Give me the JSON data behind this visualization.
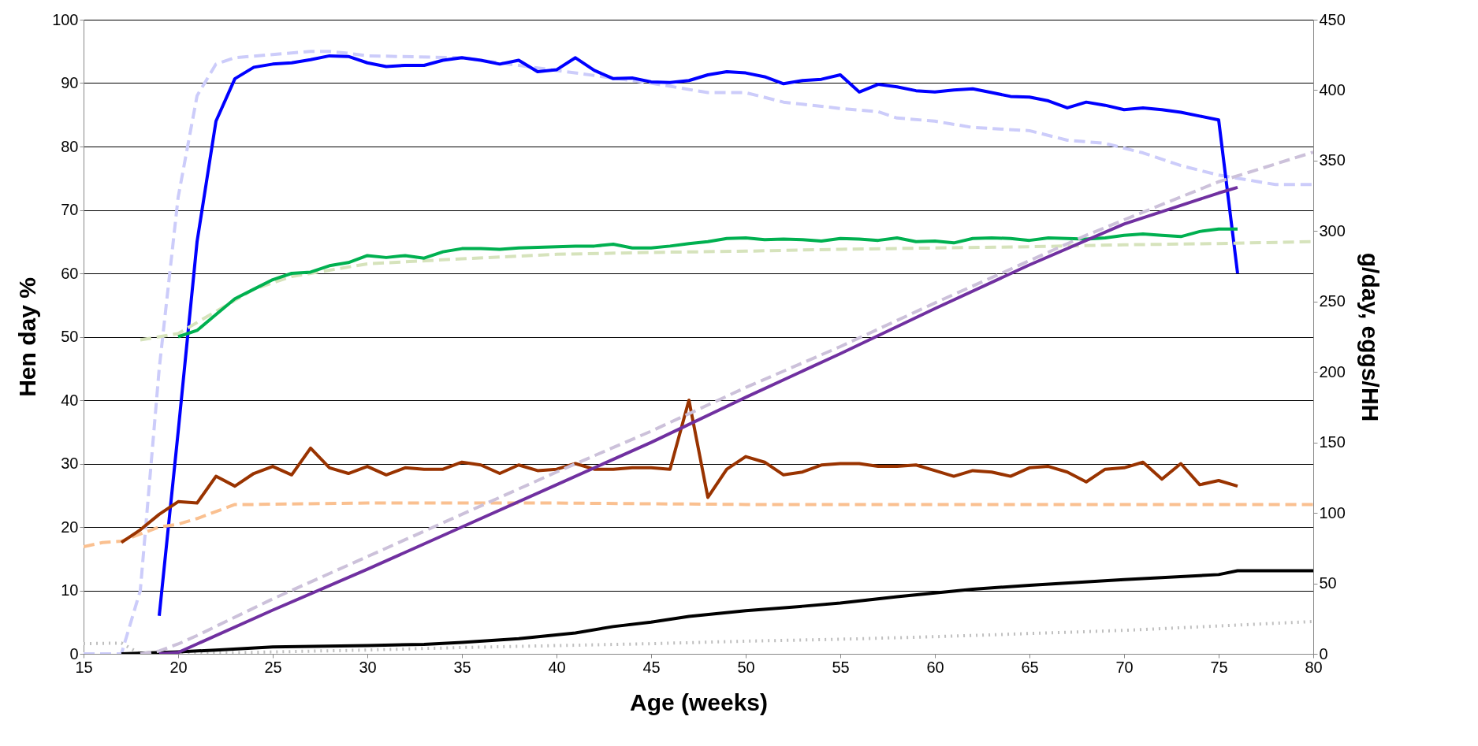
{
  "chart_data": {
    "type": "line",
    "xlabel": "Age (weeks)",
    "ylabel": "Hen day %",
    "y2label": "g/day, eggs/HH",
    "xlim": [
      15,
      80
    ],
    "xticks": [
      15,
      20,
      25,
      30,
      35,
      40,
      45,
      50,
      55,
      60,
      65,
      70,
      75,
      80
    ],
    "ylim": [
      0,
      100
    ],
    "yticks": [
      0,
      10,
      20,
      30,
      40,
      50,
      60,
      70,
      80,
      90,
      100
    ],
    "y2lim": [
      0,
      450
    ],
    "y2ticks": [
      0,
      50,
      100,
      150,
      200,
      250,
      300,
      350,
      400,
      450
    ],
    "grid": "y",
    "marker": "none",
    "series": [
      {
        "color": "#ccccfa",
        "line_style": "dashed",
        "x": [
          15,
          16,
          17,
          18,
          19,
          20,
          21,
          22,
          23,
          27,
          28,
          29,
          30,
          35,
          40,
          45,
          48,
          50,
          52,
          55,
          57,
          58,
          60,
          62,
          65,
          67,
          69,
          71,
          73,
          75,
          77,
          78,
          80
        ],
        "values": [
          0,
          0,
          0,
          10,
          45,
          72,
          88,
          93,
          94,
          95,
          95,
          94.7,
          94.3,
          94,
          92,
          90,
          88.5,
          88.5,
          87,
          86,
          85.5,
          84.5,
          84,
          83,
          82.5,
          81,
          80.5,
          79,
          77,
          75.5,
          74.5,
          74,
          74
        ]
      },
      {
        "color": "#0000ff",
        "line_style": "solid",
        "x": [
          19,
          20,
          21,
          22,
          23,
          24,
          25,
          26,
          27,
          28,
          29,
          30,
          31,
          32,
          33,
          34,
          35,
          36,
          37,
          38,
          39,
          40,
          41,
          42,
          43,
          44,
          45,
          46,
          47,
          48,
          49,
          50,
          51,
          52,
          53,
          54,
          55,
          56,
          57,
          58,
          59,
          60,
          61,
          62,
          63,
          64,
          65,
          66,
          67,
          68,
          69,
          70,
          71,
          72,
          73,
          74,
          75,
          76
        ],
        "values": [
          6,
          35,
          65,
          84,
          90.7,
          92.5,
          93,
          93.2,
          93.7,
          94.3,
          94.2,
          93.2,
          92.6,
          92.8,
          92.8,
          93.6,
          94,
          93.6,
          93,
          93.6,
          91.8,
          92.1,
          94,
          92,
          90.7,
          90.8,
          90.2,
          90.1,
          90.4,
          91.3,
          91.8,
          91.6,
          91,
          89.9,
          90.4,
          90.6,
          91.3,
          88.6,
          89.8,
          89.4,
          88.8,
          88.6,
          88.9,
          89.1,
          88.5,
          87.9,
          87.8,
          87.2,
          86.1,
          87,
          86.5,
          85.8,
          86.1,
          85.8,
          85.4,
          84.8,
          84.2,
          60
        ]
      },
      {
        "color": "#d6e3bc",
        "line_style": "dashed",
        "x": [
          18,
          20,
          22,
          24,
          26,
          28,
          30,
          35,
          40,
          45,
          50,
          55,
          60,
          65,
          70,
          75,
          80
        ],
        "values": [
          49.5,
          50.5,
          54,
          57.5,
          59.5,
          60.5,
          61.5,
          62.3,
          63,
          63.3,
          63.5,
          63.8,
          64,
          64.2,
          64.5,
          64.7,
          65
        ]
      },
      {
        "color": "#00b050",
        "line_style": "solid",
        "x": [
          20,
          21,
          22,
          23,
          24,
          25,
          26,
          27,
          28,
          29,
          30,
          31,
          32,
          33,
          34,
          35,
          36,
          37,
          38,
          39,
          40,
          41,
          42,
          43,
          44,
          45,
          46,
          47,
          48,
          49,
          50,
          51,
          52,
          53,
          54,
          55,
          56,
          57,
          58,
          59,
          60,
          61,
          62,
          63,
          64,
          65,
          66,
          67,
          68,
          69,
          70,
          71,
          72,
          73,
          74,
          75,
          76
        ],
        "values": [
          50,
          51,
          53.5,
          56,
          57.5,
          59,
          60,
          60.2,
          61.2,
          61.7,
          62.8,
          62.5,
          62.8,
          62.4,
          63.4,
          63.9,
          63.9,
          63.8,
          64,
          64.1,
          64.2,
          64.3,
          64.3,
          64.6,
          64,
          64,
          64.3,
          64.7,
          65,
          65.5,
          65.6,
          65.3,
          65.4,
          65.3,
          65.1,
          65.5,
          65.4,
          65.2,
          65.6,
          65,
          65.1,
          64.8,
          65.5,
          65.6,
          65.5,
          65.2,
          65.6,
          65.5,
          65.4,
          65.6,
          66,
          66.2,
          66,
          65.8,
          66.6,
          67,
          67
        ]
      },
      {
        "color": "#fac090",
        "line_style": "dashed",
        "axis": "y2",
        "x": [
          15,
          16,
          17,
          18,
          19,
          20,
          21,
          22,
          23,
          24,
          30,
          40,
          50,
          60,
          70,
          80
        ],
        "values": [
          76,
          79,
          80,
          85,
          90,
          92,
          96,
          101,
          106,
          106,
          107,
          107,
          106,
          106,
          106,
          106
        ]
      },
      {
        "color": "#993300",
        "line_style": "solid",
        "axis": "y2",
        "x": [
          17,
          18,
          19,
          20,
          21,
          22,
          23,
          24,
          25,
          26,
          27,
          28,
          29,
          30,
          31,
          32,
          33,
          34,
          35,
          36,
          37,
          38,
          39,
          40,
          41,
          42,
          43,
          44,
          45,
          46,
          47,
          48,
          49,
          50,
          51,
          52,
          53,
          54,
          55,
          56,
          57,
          58,
          59,
          60,
          61,
          62,
          63,
          64,
          65,
          66,
          67,
          68,
          69,
          70,
          71,
          72,
          73,
          74,
          75,
          76
        ],
        "values": [
          79,
          88,
          99,
          108,
          107,
          126,
          119,
          128,
          133,
          127,
          146,
          132,
          128,
          133,
          127,
          132,
          131,
          131,
          136,
          134,
          128,
          134,
          130,
          131,
          135,
          131,
          131,
          132,
          132,
          131,
          180,
          111,
          131,
          140,
          136,
          127,
          129,
          134,
          135,
          135,
          133,
          133,
          134,
          130,
          126,
          130,
          129,
          126,
          132,
          133,
          129,
          122,
          131,
          132,
          136,
          124,
          135,
          120,
          123,
          119
        ]
      },
      {
        "color": "#ccc1da",
        "line_style": "dashed",
        "axis": "y2",
        "x": [
          18,
          19,
          20,
          21,
          25,
          30,
          35,
          40,
          45,
          50,
          55,
          60,
          65,
          68,
          70,
          75,
          80
        ],
        "values": [
          0,
          2,
          7,
          13,
          39,
          69,
          99,
          129,
          158,
          189,
          218,
          249,
          279,
          297,
          308,
          335,
          356
        ]
      },
      {
        "color": "#7030a0",
        "line_style": "solid",
        "axis": "y2",
        "x": [
          19,
          20,
          21,
          25,
          30,
          35,
          40,
          45,
          50,
          55,
          60,
          65,
          70,
          75,
          76
        ],
        "values": [
          0,
          1,
          7,
          31,
          60,
          90,
          120,
          150,
          182,
          213,
          245,
          276,
          305,
          327,
          331
        ]
      },
      {
        "color": "#bfbfbf",
        "line_style": "dotted",
        "x": [
          15,
          17,
          18,
          20,
          25,
          30,
          35,
          40,
          45,
          50,
          55,
          60,
          65,
          70,
          75,
          80
        ],
        "values": [
          1.6,
          1.7,
          0,
          0,
          0.3,
          0.6,
          1,
          1.3,
          1.6,
          2,
          2.3,
          2.7,
          3.2,
          3.7,
          4.4,
          5.1
        ]
      },
      {
        "color": "#000000",
        "line_style": "solid",
        "x": [
          17,
          20,
          22,
          25,
          30,
          33,
          35,
          38,
          41,
          43,
          45,
          47,
          50,
          53,
          55,
          58,
          60,
          62,
          65,
          70,
          75,
          76,
          80
        ],
        "values": [
          0,
          0.3,
          0.6,
          1.1,
          1.3,
          1.5,
          1.8,
          2.4,
          3.3,
          4.3,
          5,
          5.9,
          6.8,
          7.5,
          8,
          9,
          9.6,
          10.2,
          10.8,
          11.7,
          12.5,
          13.1,
          13.1
        ]
      }
    ]
  }
}
